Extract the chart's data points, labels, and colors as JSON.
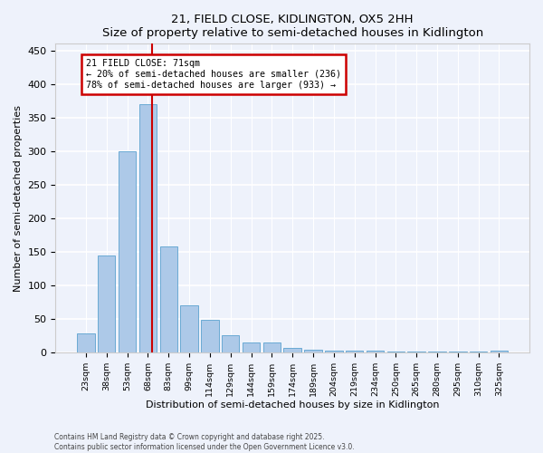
{
  "title1": "21, FIELD CLOSE, KIDLINGTON, OX5 2HH",
  "title2": "Size of property relative to semi-detached houses in Kidlington",
  "xlabel": "Distribution of semi-detached houses by size in Kidlington",
  "ylabel": "Number of semi-detached properties",
  "bar_color": "#adc9e8",
  "bar_edge_color": "#6aaad4",
  "background_color": "#eef2fb",
  "grid_color": "#ffffff",
  "categories": [
    "23sqm",
    "38sqm",
    "53sqm",
    "68sqm",
    "83sqm",
    "99sqm",
    "114sqm",
    "129sqm",
    "144sqm",
    "159sqm",
    "174sqm",
    "189sqm",
    "204sqm",
    "219sqm",
    "234sqm",
    "250sqm",
    "265sqm",
    "280sqm",
    "295sqm",
    "310sqm",
    "325sqm"
  ],
  "values": [
    28,
    145,
    300,
    370,
    158,
    70,
    48,
    25,
    15,
    15,
    6,
    4,
    3,
    3,
    2,
    1,
    1,
    1,
    1,
    1,
    3
  ],
  "vline_x": 3.22,
  "vline_color": "#cc0000",
  "annotation_title": "21 FIELD CLOSE: 71sqm",
  "annotation_line1": "← 20% of semi-detached houses are smaller (236)",
  "annotation_line2": "78% of semi-detached houses are larger (933) →",
  "annotation_border_color": "#cc0000",
  "ylim": [
    0,
    460
  ],
  "yticks": [
    0,
    50,
    100,
    150,
    200,
    250,
    300,
    350,
    400,
    450
  ],
  "footnote1": "Contains HM Land Registry data © Crown copyright and database right 2025.",
  "footnote2": "Contains public sector information licensed under the Open Government Licence v3.0."
}
